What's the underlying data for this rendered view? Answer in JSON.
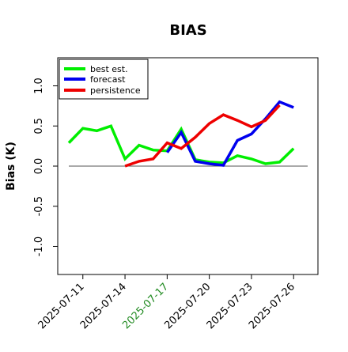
{
  "chart_data": {
    "type": "line",
    "title": "BIAS",
    "xlabel": "",
    "ylabel": "Bias (K)",
    "ylim": [
      -1.35,
      1.35
    ],
    "yticks": [
      -1.0,
      -0.5,
      0.0,
      0.5,
      1.0
    ],
    "ytick_labels": [
      "-1.0",
      "-0.5",
      "0.0",
      "0.5",
      "1.0"
    ],
    "xlim": [
      "2025-07-10",
      "2025-07-27"
    ],
    "xticks": [
      {
        "date": "2025-07-11",
        "label": "2025-07-11",
        "color": "#000000"
      },
      {
        "date": "2025-07-14",
        "label": "2025-07-14",
        "color": "#000000"
      },
      {
        "date": "2025-07-17",
        "label": "2025-07-17",
        "color": "#228b22"
      },
      {
        "date": "2025-07-20",
        "label": "2025-07-20",
        "color": "#000000"
      },
      {
        "date": "2025-07-23",
        "label": "2025-07-23",
        "color": "#000000"
      },
      {
        "date": "2025-07-26",
        "label": "2025-07-26",
        "color": "#000000"
      }
    ],
    "zero_line": true,
    "grid": false,
    "legend": "top-left",
    "series": [
      {
        "name": "best est.",
        "color": "#00ee00",
        "points": [
          [
            "2025-07-10",
            0.29
          ],
          [
            "2025-07-11",
            0.47
          ],
          [
            "2025-07-12",
            0.44
          ],
          [
            "2025-07-13",
            0.5
          ],
          [
            "2025-07-14",
            0.09
          ],
          [
            "2025-07-15",
            0.26
          ],
          [
            "2025-07-16",
            0.2
          ],
          [
            "2025-07-17",
            0.19
          ],
          [
            "2025-07-18",
            0.46
          ],
          [
            "2025-07-19",
            0.08
          ],
          [
            "2025-07-20",
            0.05
          ],
          [
            "2025-07-21",
            0.04
          ],
          [
            "2025-07-22",
            0.13
          ],
          [
            "2025-07-23",
            0.09
          ],
          [
            "2025-07-24",
            0.03
          ],
          [
            "2025-07-25",
            0.05
          ],
          [
            "2025-07-26",
            0.22
          ]
        ]
      },
      {
        "name": "forecast",
        "color": "#0000ee",
        "points": [
          [
            "2025-07-17",
            0.17
          ],
          [
            "2025-07-18",
            0.42
          ],
          [
            "2025-07-19",
            0.06
          ],
          [
            "2025-07-20",
            0.03
          ],
          [
            "2025-07-21",
            0.01
          ],
          [
            "2025-07-22",
            0.32
          ],
          [
            "2025-07-23",
            0.4
          ],
          [
            "2025-07-24",
            0.59
          ],
          [
            "2025-07-25",
            0.8
          ],
          [
            "2025-07-26",
            0.73
          ]
        ]
      },
      {
        "name": "persistence",
        "color": "#ee0000",
        "points": [
          [
            "2025-07-14",
            0.0
          ],
          [
            "2025-07-15",
            0.06
          ],
          [
            "2025-07-16",
            0.09
          ],
          [
            "2025-07-17",
            0.29
          ],
          [
            "2025-07-18",
            0.22
          ],
          [
            "2025-07-19",
            0.36
          ],
          [
            "2025-07-20",
            0.53
          ],
          [
            "2025-07-21",
            0.64
          ],
          [
            "2025-07-22",
            0.57
          ],
          [
            "2025-07-23",
            0.49
          ],
          [
            "2025-07-24",
            0.57
          ],
          [
            "2025-07-25",
            0.76
          ]
        ]
      }
    ]
  }
}
